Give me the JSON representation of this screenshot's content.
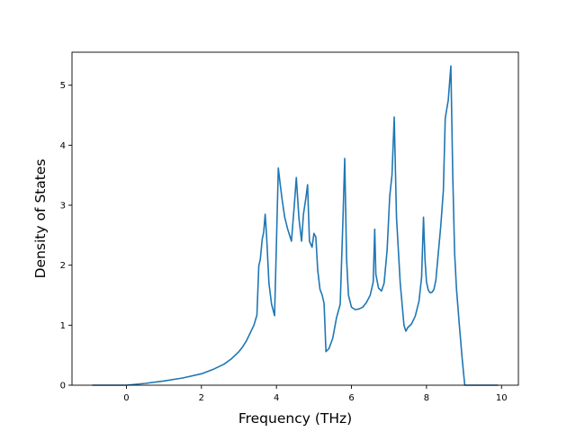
{
  "chart_data": {
    "type": "line",
    "xlabel": "Frequency (THz)",
    "ylabel": "Density of States",
    "xlim": [
      -1.45,
      10.45
    ],
    "ylim": [
      0,
      5.55
    ],
    "xticks": [
      0,
      2,
      4,
      6,
      8,
      10
    ],
    "yticks": [
      0,
      1,
      2,
      3,
      4,
      5
    ],
    "grid": false,
    "line_color": "#1f77b4",
    "series": [
      {
        "x": [
          -0.9,
          -0.5,
          0.0,
          0.5,
          1.0,
          1.5,
          2.0,
          2.3,
          2.6,
          2.8,
          3.0,
          3.1,
          3.2,
          3.3,
          3.4,
          3.48,
          3.53,
          3.57,
          3.62,
          3.66,
          3.7,
          3.74,
          3.8,
          3.87,
          3.95,
          4.0,
          4.05,
          4.1,
          4.15,
          4.22,
          4.3,
          4.4,
          4.47,
          4.53,
          4.6,
          4.67,
          4.72,
          4.78,
          4.83,
          4.88,
          4.95,
          5.0,
          5.05,
          5.1,
          5.16,
          5.22,
          5.27,
          5.32,
          5.4,
          5.5,
          5.6,
          5.7,
          5.77,
          5.82,
          5.87,
          5.92,
          6.0,
          6.1,
          6.2,
          6.3,
          6.4,
          6.5,
          6.58,
          6.62,
          6.65,
          6.72,
          6.8,
          6.87,
          6.95,
          7.02,
          7.08,
          7.14,
          7.2,
          7.3,
          7.4,
          7.45,
          7.5,
          7.6,
          7.7,
          7.8,
          7.87,
          7.92,
          7.96,
          8.0,
          8.05,
          8.1,
          8.15,
          8.2,
          8.25,
          8.3,
          8.38,
          8.45,
          8.5,
          8.58,
          8.65,
          8.7,
          8.75,
          8.8,
          8.87,
          8.95,
          9.02,
          9.1,
          9.2,
          9.5,
          9.9
        ],
        "y": [
          0.0,
          0.0,
          0.0,
          0.03,
          0.07,
          0.12,
          0.19,
          0.26,
          0.35,
          0.44,
          0.56,
          0.64,
          0.74,
          0.87,
          1.0,
          1.17,
          1.99,
          2.1,
          2.43,
          2.55,
          2.85,
          2.46,
          1.7,
          1.35,
          1.16,
          2.37,
          3.62,
          3.35,
          3.1,
          2.8,
          2.6,
          2.4,
          2.95,
          3.46,
          2.78,
          2.4,
          2.85,
          3.1,
          3.34,
          2.4,
          2.3,
          2.53,
          2.47,
          1.92,
          1.6,
          1.5,
          1.36,
          0.56,
          0.61,
          0.78,
          1.12,
          1.35,
          2.7,
          3.78,
          2.1,
          1.5,
          1.3,
          1.26,
          1.27,
          1.3,
          1.38,
          1.5,
          1.72,
          2.6,
          1.85,
          1.62,
          1.57,
          1.7,
          2.25,
          3.15,
          3.5,
          4.47,
          2.8,
          1.7,
          1.0,
          0.9,
          0.96,
          1.02,
          1.15,
          1.4,
          1.8,
          2.8,
          2.1,
          1.72,
          1.58,
          1.54,
          1.55,
          1.6,
          1.75,
          2.1,
          2.65,
          3.25,
          4.45,
          4.75,
          5.32,
          3.5,
          2.2,
          1.6,
          1.05,
          0.45,
          0.0,
          0.0,
          0.0,
          0.0,
          0.0
        ]
      }
    ]
  }
}
